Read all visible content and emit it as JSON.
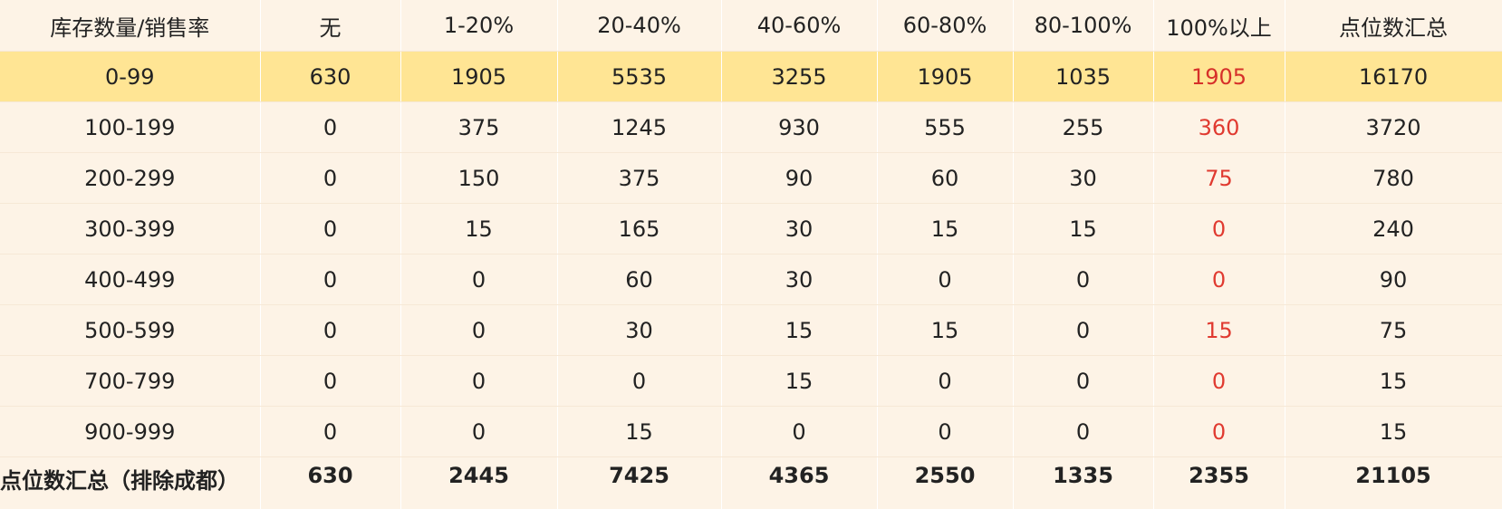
{
  "table": {
    "headers": [
      "库存数量/销售率",
      "无",
      "1-20%",
      "20-40%",
      "40-60%",
      "60-80%",
      "80-100%",
      "100%以上",
      "点位数汇总"
    ],
    "rows": [
      [
        "0-99",
        "630",
        "1905",
        "5535",
        "3255",
        "1905",
        "1035",
        "1905",
        "16170"
      ],
      [
        "100-199",
        "0",
        "375",
        "1245",
        "930",
        "555",
        "255",
        "360",
        "3720"
      ],
      [
        "200-299",
        "0",
        "150",
        "375",
        "90",
        "60",
        "30",
        "75",
        "780"
      ],
      [
        "300-399",
        "0",
        "15",
        "165",
        "30",
        "15",
        "15",
        "0",
        "240"
      ],
      [
        "400-499",
        "0",
        "0",
        "60",
        "30",
        "0",
        "0",
        "0",
        "90"
      ],
      [
        "500-599",
        "0",
        "0",
        "30",
        "15",
        "15",
        "0",
        "15",
        "75"
      ],
      [
        "700-799",
        "0",
        "0",
        "0",
        "15",
        "0",
        "0",
        "0",
        "15"
      ],
      [
        "900-999",
        "0",
        "0",
        "15",
        "0",
        "0",
        "0",
        "0",
        "15"
      ]
    ],
    "total_row": [
      "点位数汇总（排除成都）",
      "630",
      "2445",
      "7425",
      "4365",
      "2550",
      "1335",
      "2355",
      "21105"
    ],
    "highlight_row_index": 0,
    "colors": {
      "cell_background": "#fdf3e6",
      "highlight_background": "#ffe594",
      "over100_text": "#e03a30",
      "text": "#222222"
    }
  }
}
